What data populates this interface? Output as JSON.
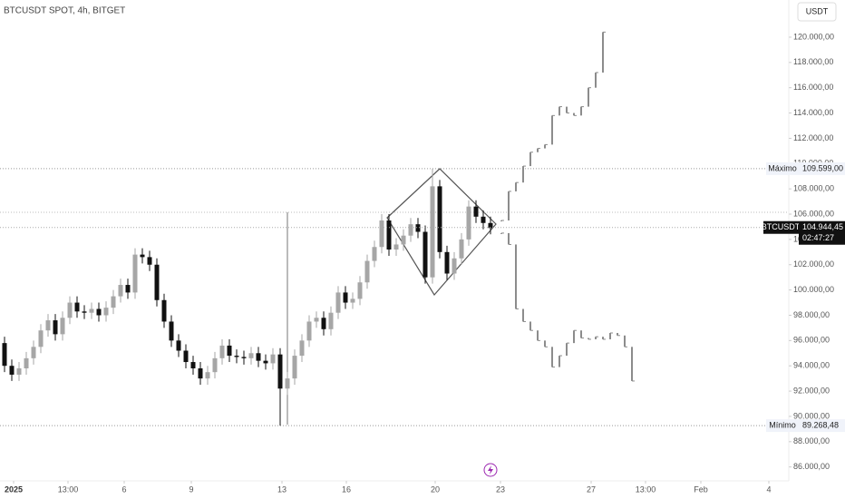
{
  "chart_data": {
    "type": "candlestick",
    "title": "BTCUSDT SPOT, 4h, BITGET",
    "currency": "USDT",
    "up_color": "#a6a6a6",
    "down_color": "#111111",
    "ylim": [
      84900,
      122940
    ],
    "yticks": [
      {
        "value": 86000,
        "label": "86.000,00"
      },
      {
        "value": 88000,
        "label": "88.000,00"
      },
      {
        "value": 90000,
        "label": "90.000,00"
      },
      {
        "value": 92000,
        "label": "92.000,00"
      },
      {
        "value": 94000,
        "label": "94.000,00"
      },
      {
        "value": 96000,
        "label": "96.000,00"
      },
      {
        "value": 98000,
        "label": "98.000,00"
      },
      {
        "value": 100000,
        "label": "100.000,00"
      },
      {
        "value": 102000,
        "label": "102.000,00"
      },
      {
        "value": 104000,
        "label": "104.000,00"
      },
      {
        "value": 106000,
        "label": "106.000,00"
      },
      {
        "value": 108000,
        "label": "108.000,00"
      },
      {
        "value": 110000,
        "label": "110.000,00"
      },
      {
        "value": 112000,
        "label": "112.000,00"
      },
      {
        "value": 114000,
        "label": "114.000,00"
      },
      {
        "value": 116000,
        "label": "116.000,00"
      },
      {
        "value": 118000,
        "label": "118.000,00"
      },
      {
        "value": 120000,
        "label": "120.000,00"
      }
    ],
    "xticks": [
      {
        "value": 1.25,
        "label": "2025"
      },
      {
        "value": 8.75,
        "label": "13:00"
      },
      {
        "value": 16.5,
        "label": "6"
      },
      {
        "value": 25.75,
        "label": "9"
      },
      {
        "value": 38.25,
        "label": "13"
      },
      {
        "value": 47.125,
        "label": "16"
      },
      {
        "value": 59.375,
        "label": "20"
      },
      {
        "value": 68.375,
        "label": "23"
      },
      {
        "value": 80.875,
        "label": "27"
      },
      {
        "value": 88.375,
        "label": "13:00"
      },
      {
        "value": 96,
        "label": "Feb"
      },
      {
        "value": 105.375,
        "label": "4"
      }
    ],
    "open": [
      95800,
      94000,
      93300,
      93800,
      94600,
      95500,
      96800,
      97600,
      96500,
      97800,
      99000,
      98300,
      98200,
      98500,
      98000,
      98600,
      99500,
      100400,
      99800,
      102800,
      102600,
      102000,
      99200,
      97500,
      96000,
      95200,
      94300,
      93800,
      93000,
      93500,
      94600,
      95600,
      94800,
      94700,
      94600,
      95000,
      94400,
      94200,
      94900,
      92200,
      93000,
      94800,
      96000,
      97500,
      97800,
      96900,
      98200,
      99800,
      99000,
      99300,
      100600,
      102300,
      103400,
      105500,
      103200,
      103600,
      104300,
      105200,
      104600,
      101000,
      108200,
      103000,
      101300,
      102500,
      104000,
      106600,
      105800,
      105300
    ],
    "high": [
      96300,
      94500,
      94300,
      95100,
      96000,
      97300,
      98100,
      98100,
      98300,
      99500,
      99500,
      98800,
      99000,
      99000,
      99100,
      100000,
      100900,
      100900,
      103300,
      103300,
      103100,
      102500,
      99700,
      98000,
      96500,
      95700,
      94800,
      94300,
      94000,
      95100,
      96100,
      96100,
      95300,
      95200,
      95500,
      95500,
      94900,
      95400,
      95400,
      93500,
      95300,
      96500,
      98000,
      98300,
      98300,
      98700,
      100300,
      100300,
      99800,
      101100,
      102800,
      103900,
      106000,
      106000,
      104100,
      104800,
      105700,
      105700,
      105100,
      109599,
      108700,
      103500,
      103000,
      104500,
      107100,
      107100,
      106300,
      105800
    ],
    "low": [
      93500,
      92800,
      92800,
      93300,
      94100,
      95000,
      96300,
      96000,
      96000,
      97300,
      97800,
      97700,
      97700,
      97500,
      97500,
      98100,
      99000,
      99300,
      99300,
      102100,
      101500,
      98700,
      97000,
      95500,
      94700,
      93800,
      93300,
      92500,
      92500,
      93000,
      94100,
      94300,
      94200,
      94100,
      94100,
      93900,
      93700,
      93700,
      89268,
      91700,
      92500,
      94300,
      95500,
      97000,
      96400,
      96400,
      97700,
      98500,
      98500,
      98800,
      100100,
      101800,
      102900,
      102700,
      102700,
      103100,
      103800,
      104100,
      100500,
      100500,
      102500,
      100800,
      100800,
      102000,
      103500,
      105300,
      104800,
      104400
    ],
    "close": [
      94000,
      93300,
      93800,
      94600,
      95500,
      96800,
      97600,
      96500,
      97800,
      99000,
      98300,
      98200,
      98500,
      98000,
      98600,
      99500,
      100400,
      99800,
      102800,
      102600,
      102000,
      99200,
      97500,
      96000,
      95200,
      94300,
      93800,
      93000,
      93500,
      94600,
      95600,
      94800,
      94700,
      94600,
      95000,
      94400,
      94200,
      94900,
      92200,
      93000,
      94800,
      96000,
      97500,
      97800,
      96900,
      98200,
      99800,
      99000,
      99300,
      100600,
      102300,
      103400,
      105500,
      103200,
      103600,
      104300,
      105200,
      104600,
      101000,
      108200,
      103000,
      101300,
      102500,
      104000,
      106600,
      105800,
      105300,
      104900
    ],
    "projections": [
      {
        "x_start": 68,
        "color": "#8c8c8c",
        "values": [
          105500,
          107800,
          108500,
          109800,
          110900,
          111200,
          111500,
          113800,
          114500,
          114000,
          113800,
          114500,
          116000,
          117200,
          120400
        ]
      },
      {
        "x_start": 68,
        "color": "#8c8c8c",
        "values": [
          104500,
          103600,
          98500,
          97500,
          96800,
          96000,
          95500,
          93900,
          94800,
          95800,
          96800,
          96200,
          96100,
          96300,
          96100,
          96600,
          96400,
          95500,
          92800
        ]
      }
    ],
    "levels": [
      {
        "name": "Máximo",
        "value": 109599,
        "value_label": "109.599,00"
      },
      {
        "name": "Mínimo",
        "value": 89268,
        "value_label": "89.268,48"
      }
    ],
    "last_price": {
      "symbol": "BTCUSDT",
      "value": 104944.45,
      "value_label": "104.944,45",
      "countdown": "02:47:27"
    }
  }
}
